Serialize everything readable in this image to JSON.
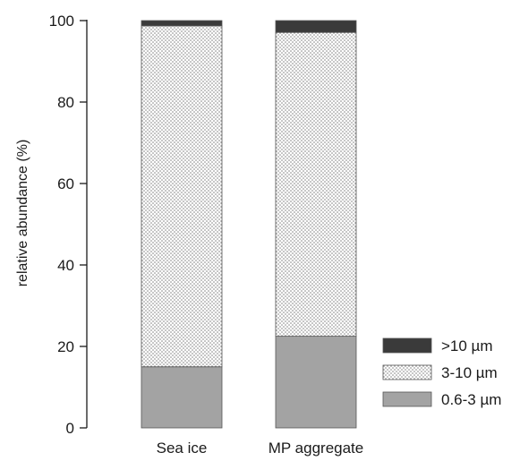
{
  "chart_data": {
    "type": "bar",
    "stacked": true,
    "title": "",
    "xlabel": "",
    "ylabel": "relative abundance (%)",
    "ylim": [
      0,
      100
    ],
    "yticks": [
      0,
      20,
      40,
      60,
      80,
      100
    ],
    "categories": [
      "Sea ice",
      "MP aggregate"
    ],
    "series": [
      {
        "name": "0.6-3 µm",
        "values": [
          15,
          22.5
        ],
        "color": "#a3a3a3",
        "pattern": "solid"
      },
      {
        "name": "3-10 µm",
        "values": [
          83.7,
          74.6
        ],
        "color": "#ffffff",
        "pattern": "dots"
      },
      {
        "name": ">10 µm",
        "values": [
          1.3,
          2.9
        ],
        "color": "#3a3a3a",
        "pattern": "solid"
      }
    ],
    "legend_position": "bottom-right",
    "grid": false
  }
}
